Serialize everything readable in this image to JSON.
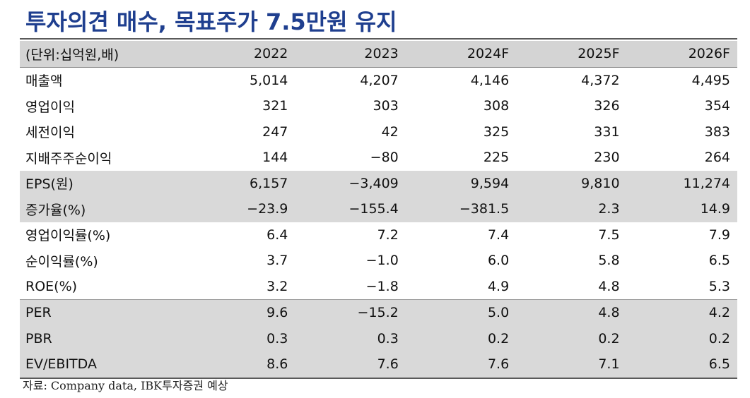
{
  "title": "투자의견 매수, 목표주가 7.5만원 유지",
  "table": {
    "unit_label": "(단위:십억원,배)",
    "years": [
      "2022",
      "2023",
      "2024F",
      "2025F",
      "2026F"
    ],
    "rows": [
      {
        "label": "매출액",
        "values": [
          "5,014",
          "4,207",
          "4,146",
          "4,372",
          "4,495"
        ]
      },
      {
        "label": "영업이익",
        "values": [
          "321",
          "303",
          "308",
          "326",
          "354"
        ]
      },
      {
        "label": "세전이익",
        "values": [
          "247",
          "42",
          "325",
          "331",
          "383"
        ]
      },
      {
        "label": "지배주주순이익",
        "values": [
          "144",
          "−80",
          "225",
          "230",
          "264"
        ]
      },
      {
        "label": "EPS(원)",
        "values": [
          "6,157",
          "−3,409",
          "9,594",
          "9,810",
          "11,274"
        ]
      },
      {
        "label": "증가율(%)",
        "values": [
          "−23.9",
          "−155.4",
          "−381.5",
          "2.3",
          "14.9"
        ]
      },
      {
        "label": "영업이익률(%)",
        "values": [
          "6.4",
          "7.2",
          "7.4",
          "7.5",
          "7.9"
        ]
      },
      {
        "label": "순이익률(%)",
        "values": [
          "3.7",
          "−1.0",
          "6.0",
          "5.8",
          "6.5"
        ]
      },
      {
        "label": "ROE(%)",
        "values": [
          "3.2",
          "−1.8",
          "4.9",
          "4.8",
          "5.3"
        ]
      },
      {
        "label": "PER",
        "values": [
          "9.6",
          "−15.2",
          "5.0",
          "4.8",
          "4.2"
        ]
      },
      {
        "label": "PBR",
        "values": [
          "0.3",
          "0.3",
          "0.2",
          "0.2",
          "0.2"
        ]
      },
      {
        "label": "EV/EBITDA",
        "values": [
          "8.6",
          "7.6",
          "7.6",
          "7.1",
          "6.5"
        ]
      }
    ]
  },
  "source": "자료: Company data, IBK투자증권 예상",
  "colors": {
    "title": "#1f3f8f",
    "header_bg": "#d4d4d4",
    "shaded_bg": "#d9d9d9"
  }
}
